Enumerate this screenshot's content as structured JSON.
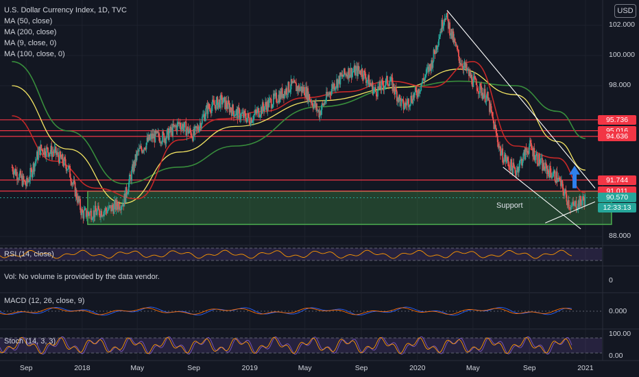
{
  "header": {
    "title": "U.S. Dollar Currency Index, 1D, TVC",
    "currency_button": "USD"
  },
  "indicators": [
    {
      "label": "MA (50, close)",
      "color": "#b71c1c"
    },
    {
      "label": "MA (200, close)",
      "color": "#388e3c"
    },
    {
      "label": "MA (9, close, 0)",
      "color": "#2962ff"
    },
    {
      "label": "MA (100, close, 0)",
      "color": "#f5e663"
    }
  ],
  "panes": {
    "rsi_label": "RSI (14, close)",
    "vol_label": "Vol: No volume is provided by the data vendor.",
    "vol_tick": "0",
    "macd_label": "MACD (12, 26, close, 9)",
    "macd_tick": "0.000",
    "stoch_label": "Stoch (14, 3, 3)",
    "stoch_ticks": [
      "100.00",
      "0.00"
    ]
  },
  "annotations": {
    "support_label": "Support",
    "clock": "12:33:13"
  },
  "price_labels": [
    {
      "text": "95.736",
      "color": "#f23645"
    },
    {
      "text": "95.016",
      "color": "#f23645"
    },
    {
      "text": "94.636",
      "color": "#f23645"
    },
    {
      "text": "91.744",
      "color": "#f23645"
    },
    {
      "text": "91.011",
      "color": "#f23645"
    },
    {
      "text": "90.570",
      "color": "#26a69a"
    }
  ],
  "colors": {
    "background": "#131722",
    "up": "#26a69a",
    "down": "#ef5350",
    "resistance": "#f23645",
    "support_zone": "#4caf50",
    "trendline": "#ffffff",
    "arrow": "#2f80ed",
    "osc_band": "#7e57c2"
  },
  "chart_data": {
    "type": "candlestick",
    "title": "U.S. Dollar Currency Index, 1D, TVC",
    "ylim": [
      87.5,
      103.5
    ],
    "y_ticks": [
      "88.000",
      "98.000",
      "100.000",
      "102.000"
    ],
    "x_ticks": [
      "Sep",
      "2018",
      "May",
      "Sep",
      "2019",
      "May",
      "Sep",
      "2020",
      "May",
      "Sep",
      "2021"
    ],
    "price_path": [
      {
        "date": "2017-08",
        "value": 92.6
      },
      {
        "date": "2017-09",
        "value": 91.4
      },
      {
        "date": "2017-10",
        "value": 93.8
      },
      {
        "date": "2017-11",
        "value": 93.6
      },
      {
        "date": "2017-12",
        "value": 92.6
      },
      {
        "date": "2018-01",
        "value": 89.5
      },
      {
        "date": "2018-02",
        "value": 89.6
      },
      {
        "date": "2018-03",
        "value": 89.8
      },
      {
        "date": "2018-04",
        "value": 90.3
      },
      {
        "date": "2018-05",
        "value": 93.5
      },
      {
        "date": "2018-06",
        "value": 94.6
      },
      {
        "date": "2018-07",
        "value": 94.6
      },
      {
        "date": "2018-08",
        "value": 95.5
      },
      {
        "date": "2018-09",
        "value": 94.7
      },
      {
        "date": "2018-10",
        "value": 96.5
      },
      {
        "date": "2018-11",
        "value": 97.0
      },
      {
        "date": "2018-12",
        "value": 96.2
      },
      {
        "date": "2019-01",
        "value": 95.8
      },
      {
        "date": "2019-02",
        "value": 96.6
      },
      {
        "date": "2019-03",
        "value": 97.2
      },
      {
        "date": "2019-04",
        "value": 98.0
      },
      {
        "date": "2019-05",
        "value": 97.7
      },
      {
        "date": "2019-06",
        "value": 96.2
      },
      {
        "date": "2019-07",
        "value": 98.0
      },
      {
        "date": "2019-08",
        "value": 98.9
      },
      {
        "date": "2019-09",
        "value": 99.0
      },
      {
        "date": "2019-10",
        "value": 97.6
      },
      {
        "date": "2019-11",
        "value": 98.4
      },
      {
        "date": "2019-12",
        "value": 96.6
      },
      {
        "date": "2020-01",
        "value": 97.6
      },
      {
        "date": "2020-02",
        "value": 99.5
      },
      {
        "date": "2020-03",
        "value": 102.8
      },
      {
        "date": "2020-04",
        "value": 99.8
      },
      {
        "date": "2020-05",
        "value": 98.3
      },
      {
        "date": "2020-06",
        "value": 97.2
      },
      {
        "date": "2020-07",
        "value": 93.5
      },
      {
        "date": "2020-08",
        "value": 92.3
      },
      {
        "date": "2020-09",
        "value": 94.0
      },
      {
        "date": "2020-10",
        "value": 92.6
      },
      {
        "date": "2020-11",
        "value": 91.9
      },
      {
        "date": "2020-12",
        "value": 89.9
      },
      {
        "date": "2021-01",
        "value": 90.5
      }
    ],
    "ma50_path": [
      {
        "date": "2017-08",
        "value": 96.0
      },
      {
        "date": "2017-11",
        "value": 93.0
      },
      {
        "date": "2018-02",
        "value": 91.2
      },
      {
        "date": "2018-05",
        "value": 90.5
      },
      {
        "date": "2018-08",
        "value": 94.4
      },
      {
        "date": "2018-11",
        "value": 95.8
      },
      {
        "date": "2019-02",
        "value": 96.3
      },
      {
        "date": "2019-05",
        "value": 97.2
      },
      {
        "date": "2019-08",
        "value": 97.6
      },
      {
        "date": "2019-11",
        "value": 98.3
      },
      {
        "date": "2020-02",
        "value": 97.9
      },
      {
        "date": "2020-05",
        "value": 99.6
      },
      {
        "date": "2020-08",
        "value": 94.0
      },
      {
        "date": "2020-11",
        "value": 93.2
      },
      {
        "date": "2021-01",
        "value": 90.9
      }
    ],
    "ma200_path": [
      {
        "date": "2017-08",
        "value": 99.6
      },
      {
        "date": "2017-12",
        "value": 95.0
      },
      {
        "date": "2018-04",
        "value": 91.5
      },
      {
        "date": "2018-08",
        "value": 92.6
      },
      {
        "date": "2018-12",
        "value": 94.0
      },
      {
        "date": "2019-06",
        "value": 96.6
      },
      {
        "date": "2019-12",
        "value": 97.9
      },
      {
        "date": "2020-04",
        "value": 98.3
      },
      {
        "date": "2020-08",
        "value": 98.0
      },
      {
        "date": "2020-11",
        "value": 96.3
      },
      {
        "date": "2021-01",
        "value": 94.5
      }
    ],
    "ma100_path": [
      {
        "date": "2017-08",
        "value": 98.0
      },
      {
        "date": "2017-12",
        "value": 93.8
      },
      {
        "date": "2018-04",
        "value": 90.2
      },
      {
        "date": "2018-08",
        "value": 93.6
      },
      {
        "date": "2018-12",
        "value": 95.3
      },
      {
        "date": "2019-06",
        "value": 97.0
      },
      {
        "date": "2019-12",
        "value": 97.9
      },
      {
        "date": "2020-04",
        "value": 99.1
      },
      {
        "date": "2020-08",
        "value": 97.4
      },
      {
        "date": "2020-11",
        "value": 94.3
      },
      {
        "date": "2021-01",
        "value": 92.4
      }
    ],
    "horizontal_levels": [
      95.736,
      95.016,
      94.636,
      91.744,
      91.011
    ],
    "support_zone": {
      "from_date": "2018-01",
      "to_date": "2021-01",
      "low": 88.8,
      "high": 91.0
    },
    "trendlines": [
      {
        "from": {
          "date": "2020-03",
          "value": 103.0
        },
        "to": {
          "date": "2021-01",
          "value": 91.2
        }
      },
      {
        "from": {
          "date": "2020-07",
          "value": 92.6
        },
        "to": {
          "date": "2020-12",
          "value": 88.5
        }
      },
      {
        "from": {
          "date": "2020-10",
          "value": 88.9
        },
        "to": {
          "date": "2021-01",
          "value": 90.3
        }
      }
    ],
    "last_price": 90.57
  }
}
